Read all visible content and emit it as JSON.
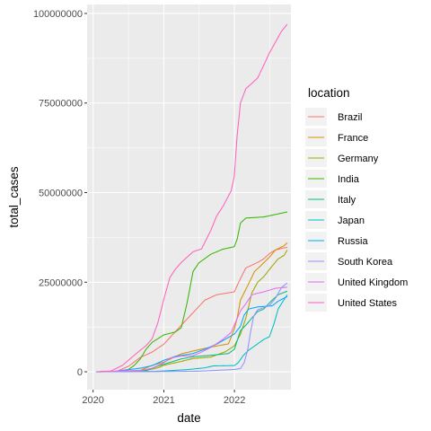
{
  "chart_data": {
    "type": "line",
    "xlabel": "date",
    "ylabel": "total_cases",
    "xlim": [
      "2019-12-01",
      "2022-10-20"
    ],
    "ylim": [
      -5000000,
      102500000
    ],
    "x_ticks": [
      {
        "date": "2020-01-01",
        "label": "2020"
      },
      {
        "date": "2021-01-01",
        "label": "2021"
      },
      {
        "date": "2022-01-01",
        "label": "2022"
      }
    ],
    "y_ticks": [
      {
        "value": 0,
        "label": "0"
      },
      {
        "value": 25000000,
        "label": "25000000"
      },
      {
        "value": 50000000,
        "label": "50000000"
      },
      {
        "value": 75000000,
        "label": "75000000"
      },
      {
        "value": 100000000,
        "label": "100000000"
      }
    ],
    "grid": true,
    "background": "#ebebeb",
    "legend": {
      "title": "location",
      "position": "right"
    },
    "series": [
      {
        "name": "Brazil",
        "color": "#F8766D",
        "points": [
          [
            "2020-02-26",
            0
          ],
          [
            "2020-05-01",
            100000
          ],
          [
            "2020-07-01",
            1500000
          ],
          [
            "2020-09-01",
            4000000
          ],
          [
            "2020-11-01",
            5500000
          ],
          [
            "2021-01-01",
            7700000
          ],
          [
            "2021-04-01",
            13000000
          ],
          [
            "2021-06-01",
            16500000
          ],
          [
            "2021-08-01",
            20000000
          ],
          [
            "2021-10-01",
            21500000
          ],
          [
            "2021-12-31",
            22300000
          ],
          [
            "2022-02-01",
            26000000
          ],
          [
            "2022-03-01",
            29000000
          ],
          [
            "2022-05-01",
            30500000
          ],
          [
            "2022-06-01",
            31500000
          ],
          [
            "2022-07-01",
            33000000
          ],
          [
            "2022-08-01",
            34000000
          ],
          [
            "2022-09-15",
            34600000
          ],
          [
            "2022-10-01",
            34700000
          ]
        ]
      },
      {
        "name": "France",
        "color": "#D89000",
        "points": [
          [
            "2020-01-24",
            0
          ],
          [
            "2020-06-01",
            200000
          ],
          [
            "2020-09-01",
            400000
          ],
          [
            "2020-11-01",
            1800000
          ],
          [
            "2021-01-01",
            2700000
          ],
          [
            "2021-04-01",
            5000000
          ],
          [
            "2021-06-01",
            5800000
          ],
          [
            "2021-09-01",
            6900000
          ],
          [
            "2021-12-01",
            7800000
          ],
          [
            "2022-01-01",
            12000000
          ],
          [
            "2022-01-15",
            15000000
          ],
          [
            "2022-02-01",
            20000000
          ],
          [
            "2022-03-01",
            23000000
          ],
          [
            "2022-04-15",
            28000000
          ],
          [
            "2022-05-15",
            29500000
          ],
          [
            "2022-07-01",
            32000000
          ],
          [
            "2022-08-01",
            34000000
          ],
          [
            "2022-09-15",
            35200000
          ],
          [
            "2022-10-01",
            36000000
          ]
        ]
      },
      {
        "name": "Germany",
        "color": "#A3A500",
        "points": [
          [
            "2020-01-27",
            0
          ],
          [
            "2020-04-01",
            100000
          ],
          [
            "2020-10-01",
            400000
          ],
          [
            "2020-12-01",
            1100000
          ],
          [
            "2021-01-01",
            1800000
          ],
          [
            "2021-04-01",
            2900000
          ],
          [
            "2021-06-01",
            3700000
          ],
          [
            "2021-09-01",
            4100000
          ],
          [
            "2021-11-15",
            5600000
          ],
          [
            "2021-12-31",
            7200000
          ],
          [
            "2022-02-01",
            10500000
          ],
          [
            "2022-03-01",
            15000000
          ],
          [
            "2022-04-01",
            22000000
          ],
          [
            "2022-05-01",
            25000000
          ],
          [
            "2022-06-01",
            26500000
          ],
          [
            "2022-07-15",
            29500000
          ],
          [
            "2022-08-15",
            31500000
          ],
          [
            "2022-09-15",
            32500000
          ],
          [
            "2022-10-01",
            34000000
          ]
        ]
      },
      {
        "name": "India",
        "color": "#39B600",
        "points": [
          [
            "2020-01-30",
            0
          ],
          [
            "2020-05-01",
            40000
          ],
          [
            "2020-07-01",
            600000
          ],
          [
            "2020-08-01",
            1800000
          ],
          [
            "2020-09-01",
            3600000
          ],
          [
            "2020-10-01",
            6300000
          ],
          [
            "2020-11-01",
            8200000
          ],
          [
            "2021-01-01",
            10300000
          ],
          [
            "2021-03-01",
            11100000
          ],
          [
            "2021-04-01",
            12300000
          ],
          [
            "2021-05-01",
            19200000
          ],
          [
            "2021-06-01",
            28000000
          ],
          [
            "2021-07-01",
            30400000
          ],
          [
            "2021-09-01",
            32800000
          ],
          [
            "2021-11-01",
            34200000
          ],
          [
            "2021-12-31",
            34900000
          ],
          [
            "2022-01-15",
            37000000
          ],
          [
            "2022-02-01",
            41500000
          ],
          [
            "2022-03-01",
            42900000
          ],
          [
            "2022-06-01",
            43200000
          ],
          [
            "2022-10-01",
            44600000
          ]
        ]
      },
      {
        "name": "Italy",
        "color": "#00BF7D",
        "points": [
          [
            "2020-01-31",
            0
          ],
          [
            "2020-04-01",
            100000
          ],
          [
            "2020-10-01",
            300000
          ],
          [
            "2020-12-01",
            1600000
          ],
          [
            "2021-01-01",
            2100000
          ],
          [
            "2021-04-01",
            3600000
          ],
          [
            "2021-06-01",
            4200000
          ],
          [
            "2021-09-01",
            4600000
          ],
          [
            "2021-12-01",
            5100000
          ],
          [
            "2022-01-01",
            6300000
          ],
          [
            "2022-02-01",
            11500000
          ],
          [
            "2022-03-01",
            13000000
          ],
          [
            "2022-04-01",
            15000000
          ],
          [
            "2022-05-01",
            16800000
          ],
          [
            "2022-06-01",
            17500000
          ],
          [
            "2022-07-15",
            20000000
          ],
          [
            "2022-08-15",
            21500000
          ],
          [
            "2022-10-01",
            22500000
          ]
        ]
      },
      {
        "name": "Japan",
        "color": "#00BFC4",
        "points": [
          [
            "2020-01-15",
            0
          ],
          [
            "2020-11-01",
            100000
          ],
          [
            "2021-01-01",
            230000
          ],
          [
            "2021-05-01",
            600000
          ],
          [
            "2021-08-01",
            1100000
          ],
          [
            "2021-09-15",
            1650000
          ],
          [
            "2021-12-31",
            1730000
          ],
          [
            "2022-01-20",
            2500000
          ],
          [
            "2022-02-15",
            4500000
          ],
          [
            "2022-03-15",
            6000000
          ],
          [
            "2022-06-01",
            9000000
          ],
          [
            "2022-07-01",
            9800000
          ],
          [
            "2022-07-25",
            13500000
          ],
          [
            "2022-08-15",
            17500000
          ],
          [
            "2022-09-01",
            19000000
          ],
          [
            "2022-10-01",
            21500000
          ]
        ]
      },
      {
        "name": "Russia",
        "color": "#00A9FF",
        "points": [
          [
            "2020-01-31",
            0
          ],
          [
            "2020-04-01",
            10000
          ],
          [
            "2020-06-01",
            400000
          ],
          [
            "2020-09-01",
            1000000
          ],
          [
            "2020-11-01",
            1700000
          ],
          [
            "2021-01-01",
            3200000
          ],
          [
            "2021-03-01",
            4300000
          ],
          [
            "2021-06-01",
            5100000
          ],
          [
            "2021-08-01",
            6300000
          ],
          [
            "2021-10-01",
            7700000
          ],
          [
            "2021-12-01",
            9600000
          ],
          [
            "2021-12-31",
            10500000
          ],
          [
            "2022-02-01",
            12700000
          ],
          [
            "2022-02-20",
            15800000
          ],
          [
            "2022-03-15",
            17500000
          ],
          [
            "2022-05-01",
            18100000
          ],
          [
            "2022-07-15",
            18400000
          ],
          [
            "2022-08-15",
            19700000
          ],
          [
            "2022-10-01",
            21000000
          ]
        ]
      },
      {
        "name": "South Korea",
        "color": "#9590FF",
        "points": [
          [
            "2020-01-20",
            0
          ],
          [
            "2021-01-01",
            70000
          ],
          [
            "2021-07-01",
            160000
          ],
          [
            "2021-12-31",
            640000
          ],
          [
            "2022-02-01",
            900000
          ],
          [
            "2022-02-20",
            2500000
          ],
          [
            "2022-03-10",
            6000000
          ],
          [
            "2022-03-25",
            11000000
          ],
          [
            "2022-04-10",
            15500000
          ],
          [
            "2022-05-01",
            17300000
          ],
          [
            "2022-07-01",
            18500000
          ],
          [
            "2022-08-01",
            20500000
          ],
          [
            "2022-09-01",
            23500000
          ],
          [
            "2022-10-01",
            24800000
          ]
        ]
      },
      {
        "name": "United Kingdom",
        "color": "#E76BF3",
        "points": [
          [
            "2020-01-31",
            0
          ],
          [
            "2020-05-01",
            200000
          ],
          [
            "2020-09-01",
            350000
          ],
          [
            "2020-11-01",
            1000000
          ],
          [
            "2021-01-01",
            2500000
          ],
          [
            "2021-02-01",
            3800000
          ],
          [
            "2021-04-01",
            4400000
          ],
          [
            "2021-06-01",
            4500000
          ],
          [
            "2021-07-15",
            5500000
          ],
          [
            "2021-09-01",
            6800000
          ],
          [
            "2021-11-01",
            9000000
          ],
          [
            "2021-12-15",
            11000000
          ],
          [
            "2021-12-31",
            13000000
          ],
          [
            "2022-02-01",
            17000000
          ],
          [
            "2022-03-01",
            19000000
          ],
          [
            "2022-04-01",
            21500000
          ],
          [
            "2022-06-01",
            22300000
          ],
          [
            "2022-08-01",
            23300000
          ],
          [
            "2022-10-01",
            23600000
          ]
        ]
      },
      {
        "name": "United States",
        "color": "#FF62BC",
        "points": [
          [
            "2020-01-22",
            0
          ],
          [
            "2020-04-01",
            200000
          ],
          [
            "2020-06-01",
            1800000
          ],
          [
            "2020-08-01",
            4600000
          ],
          [
            "2020-09-01",
            6000000
          ],
          [
            "2020-10-01",
            7300000
          ],
          [
            "2020-11-01",
            9200000
          ],
          [
            "2020-12-01",
            13700000
          ],
          [
            "2021-01-01",
            20300000
          ],
          [
            "2021-02-01",
            26300000
          ],
          [
            "2021-03-01",
            28600000
          ],
          [
            "2021-04-01",
            30500000
          ],
          [
            "2021-06-01",
            33500000
          ],
          [
            "2021-07-15",
            34300000
          ],
          [
            "2021-09-01",
            39500000
          ],
          [
            "2021-10-01",
            43500000
          ],
          [
            "2021-11-01",
            46000000
          ],
          [
            "2021-12-15",
            50500000
          ],
          [
            "2021-12-31",
            54500000
          ],
          [
            "2022-01-15",
            66000000
          ],
          [
            "2022-02-01",
            75000000
          ],
          [
            "2022-03-01",
            79000000
          ],
          [
            "2022-04-01",
            80500000
          ],
          [
            "2022-05-01",
            82000000
          ],
          [
            "2022-06-01",
            85500000
          ],
          [
            "2022-07-01",
            89000000
          ],
          [
            "2022-08-01",
            92000000
          ],
          [
            "2022-09-01",
            95000000
          ],
          [
            "2022-10-01",
            97000000
          ]
        ]
      }
    ]
  }
}
